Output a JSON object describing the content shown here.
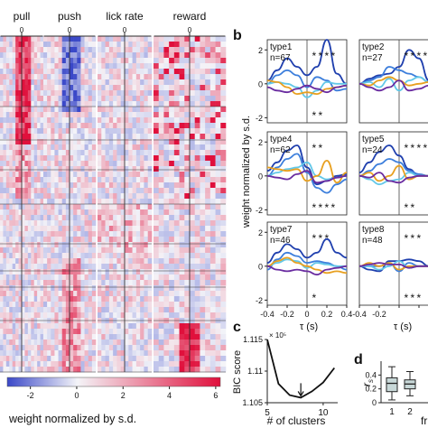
{
  "panel_letters": {
    "b": "b",
    "c": "c",
    "d": "d"
  },
  "heatmap": {
    "column_titles": [
      "pull",
      "push",
      "lick rate",
      "reward"
    ],
    "zero_tick_label": "0",
    "colorbar": {
      "ticks": [
        "-2",
        "0",
        "2",
        "4",
        "6"
      ],
      "label": "weight normalized by s.d.",
      "colors": {
        "low": "#3a48c8",
        "mid": "#f4f4f8",
        "high": "#e0103c"
      }
    }
  },
  "chart_data": [
    {
      "type": "line",
      "panel": "b",
      "ylabel": "weight normalized by s.d.",
      "xlabel": "τ (s)",
      "xlim": [
        -0.4,
        0.4
      ],
      "ylim": [
        -2.3,
        2.6
      ],
      "x_ticks": [
        "-0.4",
        "-0.2",
        "0",
        "0.2",
        "0.4"
      ],
      "y_ticks": [
        "2",
        "0",
        "-2"
      ],
      "x": [
        -0.4,
        -0.3,
        -0.2,
        -0.1,
        0.0,
        0.1,
        0.2,
        0.3,
        0.4
      ],
      "series_colors": [
        "#1f3fae",
        "#3d7fdc",
        "#63c8e8",
        "#e8a020",
        "#6a2ca0"
      ],
      "marker_colors": [
        "#5fa8e8",
        "#7fd3e8",
        "#c050c8"
      ],
      "subplots": [
        {
          "type_label": "type1",
          "n_label": "n=67",
          "top_markers": 4,
          "bottom_markers": 2,
          "series": [
            [
              0.2,
              0.8,
              1.5,
              1.0,
              0.5,
              1.0,
              2.6,
              0.6,
              0.0
            ],
            [
              0.0,
              0.5,
              0.8,
              0.5,
              -0.2,
              0.4,
              0.2,
              -0.4,
              -0.3
            ],
            [
              0.0,
              0.1,
              0.0,
              -0.2,
              -0.8,
              -0.4,
              0.1,
              0.0,
              0.0
            ],
            [
              0.2,
              0.1,
              -0.2,
              -0.6,
              -0.5,
              -0.6,
              -0.3,
              -0.2,
              -0.1
            ],
            [
              -0.2,
              -0.4,
              -0.5,
              -0.3,
              -0.1,
              -0.3,
              -0.5,
              -0.2,
              -0.1
            ]
          ]
        },
        {
          "type_label": "type2",
          "n_label": "n=27",
          "top_markers": 4,
          "bottom_markers": 0,
          "series": [
            [
              0.0,
              0.3,
              0.5,
              0.6,
              1.0,
              2.0,
              1.5,
              0.2,
              0.0
            ],
            [
              0.0,
              0.2,
              0.4,
              1.0,
              0.8,
              0.6,
              0.4,
              0.1,
              0.0
            ],
            [
              0.0,
              0.1,
              -0.2,
              0.3,
              -0.4,
              0.2,
              0.4,
              0.1,
              0.0
            ],
            [
              0.0,
              -0.1,
              0.2,
              0.4,
              0.2,
              -0.1,
              0.0,
              0.1,
              0.0
            ],
            [
              0.0,
              -0.2,
              -0.4,
              -0.2,
              0.2,
              -0.4,
              -0.3,
              -0.1,
              0.0
            ]
          ]
        },
        {
          "type_label": "type4",
          "n_label": "n=62",
          "top_markers": 2,
          "bottom_markers": 4,
          "series": [
            [
              0.3,
              0.8,
              1.5,
              1.8,
              0.5,
              -0.5,
              -0.3,
              0.0,
              0.1
            ],
            [
              0.0,
              0.5,
              1.0,
              1.3,
              0.2,
              -0.7,
              -1.0,
              -0.5,
              -0.2
            ],
            [
              0.0,
              0.2,
              0.4,
              0.5,
              0.8,
              0.0,
              -0.2,
              -0.1,
              0.0
            ],
            [
              0.5,
              0.4,
              0.3,
              0.4,
              -0.3,
              0.0,
              0.9,
              -0.4,
              0.2
            ],
            [
              0.0,
              -0.1,
              -0.2,
              0.1,
              0.3,
              -0.4,
              -0.3,
              -0.1,
              0.0
            ]
          ]
        },
        {
          "type_label": "type5",
          "n_label": "n=24",
          "top_markers": 4,
          "bottom_markers": 2,
          "series": [
            [
              0.2,
              0.8,
              1.4,
              1.8,
              1.2,
              0.4,
              0.0,
              0.0,
              0.0
            ],
            [
              0.0,
              0.3,
              0.7,
              1.0,
              0.8,
              0.3,
              0.1,
              0.0,
              0.0
            ],
            [
              0.0,
              -0.2,
              -0.5,
              -0.3,
              -0.2,
              0.2,
              0.0,
              0.0,
              0.0
            ],
            [
              0.0,
              0.2,
              -0.3,
              0.0,
              0.6,
              -0.2,
              0.0,
              0.0,
              0.0
            ],
            [
              0.0,
              -0.1,
              0.2,
              -0.3,
              -0.4,
              -0.1,
              0.0,
              0.0,
              0.0
            ]
          ]
        },
        {
          "type_label": "type7",
          "n_label": "n=46",
          "top_markers": 3,
          "bottom_markers": 1,
          "series": [
            [
              0.2,
              0.8,
              1.3,
              1.0,
              0.5,
              0.8,
              1.6,
              0.8,
              0.5
            ],
            [
              -0.2,
              0.4,
              0.8,
              0.6,
              0.2,
              0.3,
              0.2,
              0.0,
              -0.2
            ],
            [
              0.0,
              0.2,
              0.4,
              0.3,
              -0.1,
              0.2,
              0.1,
              0.0,
              0.0
            ],
            [
              0.0,
              0.3,
              0.5,
              0.2,
              0.0,
              -0.2,
              -0.4,
              -0.3,
              -0.4
            ],
            [
              0.0,
              -0.2,
              -0.3,
              -0.2,
              -0.3,
              -0.5,
              -0.2,
              -0.1,
              0.0
            ]
          ]
        },
        {
          "type_label": "type8",
          "n_label": "n=48",
          "top_markers": 3,
          "bottom_markers": 3,
          "series": [
            [
              0.0,
              -0.2,
              -0.3,
              0.3,
              0.3,
              0.4,
              0.3,
              0.0,
              0.0
            ],
            [
              0.0,
              0.0,
              0.0,
              0.2,
              -0.3,
              0.2,
              0.0,
              0.0,
              0.0
            ],
            [
              0.0,
              0.0,
              -0.2,
              0.0,
              0.3,
              -0.1,
              0.0,
              0.0,
              0.0
            ],
            [
              0.0,
              0.2,
              0.0,
              0.2,
              -0.2,
              0.0,
              0.0,
              0.0,
              0.0
            ],
            [
              0.0,
              0.1,
              0.2,
              0.1,
              0.1,
              -0.1,
              0.0,
              0.0,
              0.0
            ]
          ]
        }
      ]
    },
    {
      "type": "line",
      "panel": "c",
      "ylabel": "BIC score",
      "xlabel": "# of clusters",
      "multiplier_label": "× 10⁵",
      "x": [
        5,
        6,
        7,
        8,
        9,
        10,
        11
      ],
      "values": [
        1.115,
        1.108,
        1.1062,
        1.1058,
        1.1068,
        1.1082,
        1.1105
      ],
      "xlim": [
        5,
        11.3
      ],
      "ylim": [
        1.105,
        1.115
      ],
      "x_ticks": [
        "5",
        "10"
      ],
      "y_ticks": [
        "1.115",
        "1.11",
        "1.105"
      ],
      "arrow_at_x": 8,
      "color": "#111111"
    },
    {
      "type": "box",
      "panel": "d",
      "ylabel": "r_s",
      "xlabel_fragment": "fr",
      "categories": [
        "1",
        "2"
      ],
      "ylim": [
        0,
        0.6
      ],
      "y_ticks": [
        "0.4",
        "0.2",
        "0"
      ],
      "boxes": [
        {
          "whisker_low": 0.04,
          "q1": 0.16,
          "median": 0.28,
          "q3": 0.36,
          "whisker_high": 0.52
        },
        {
          "whisker_low": 0.1,
          "q1": 0.2,
          "median": 0.27,
          "q3": 0.33,
          "whisker_high": 0.45
        }
      ],
      "box_fill": "#c8d8d8"
    }
  ]
}
